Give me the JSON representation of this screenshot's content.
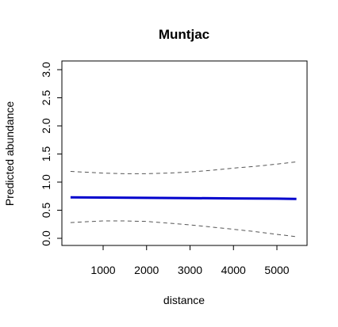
{
  "chart_data": {
    "type": "line",
    "title": "Muntjac",
    "xlabel": "distance",
    "ylabel": "Predicted abundance",
    "xlim": [
      200,
      5500
    ],
    "ylim": [
      0,
      3
    ],
    "x_ticks": [
      1000,
      2000,
      3000,
      4000,
      5000
    ],
    "y_ticks": [
      "0.0",
      "0.5",
      "1.0",
      "1.5",
      "2.0",
      "2.5",
      "3.0"
    ],
    "grid": false,
    "legend": false,
    "series": [
      {
        "role": "prediction",
        "color": "#0000cd",
        "style": "solid",
        "x": [
          250,
          1000,
          2000,
          3000,
          4000,
          5000,
          5450
        ],
        "y": [
          0.73,
          0.725,
          0.72,
          0.715,
          0.71,
          0.705,
          0.7
        ]
      },
      {
        "role": "upper-confidence",
        "color": "#555555",
        "style": "dashed",
        "x": [
          250,
          1000,
          1500,
          2000,
          2500,
          3000,
          3500,
          4000,
          4500,
          5000,
          5450
        ],
        "y": [
          1.19,
          1.16,
          1.15,
          1.15,
          1.16,
          1.18,
          1.21,
          1.25,
          1.28,
          1.32,
          1.36
        ]
      },
      {
        "role": "lower-confidence",
        "color": "#555555",
        "style": "dashed",
        "x": [
          250,
          1000,
          1500,
          2000,
          2500,
          3000,
          3500,
          4000,
          4500,
          5000,
          5450
        ],
        "y": [
          0.28,
          0.31,
          0.31,
          0.3,
          0.27,
          0.24,
          0.2,
          0.16,
          0.12,
          0.07,
          0.03
        ]
      }
    ]
  }
}
